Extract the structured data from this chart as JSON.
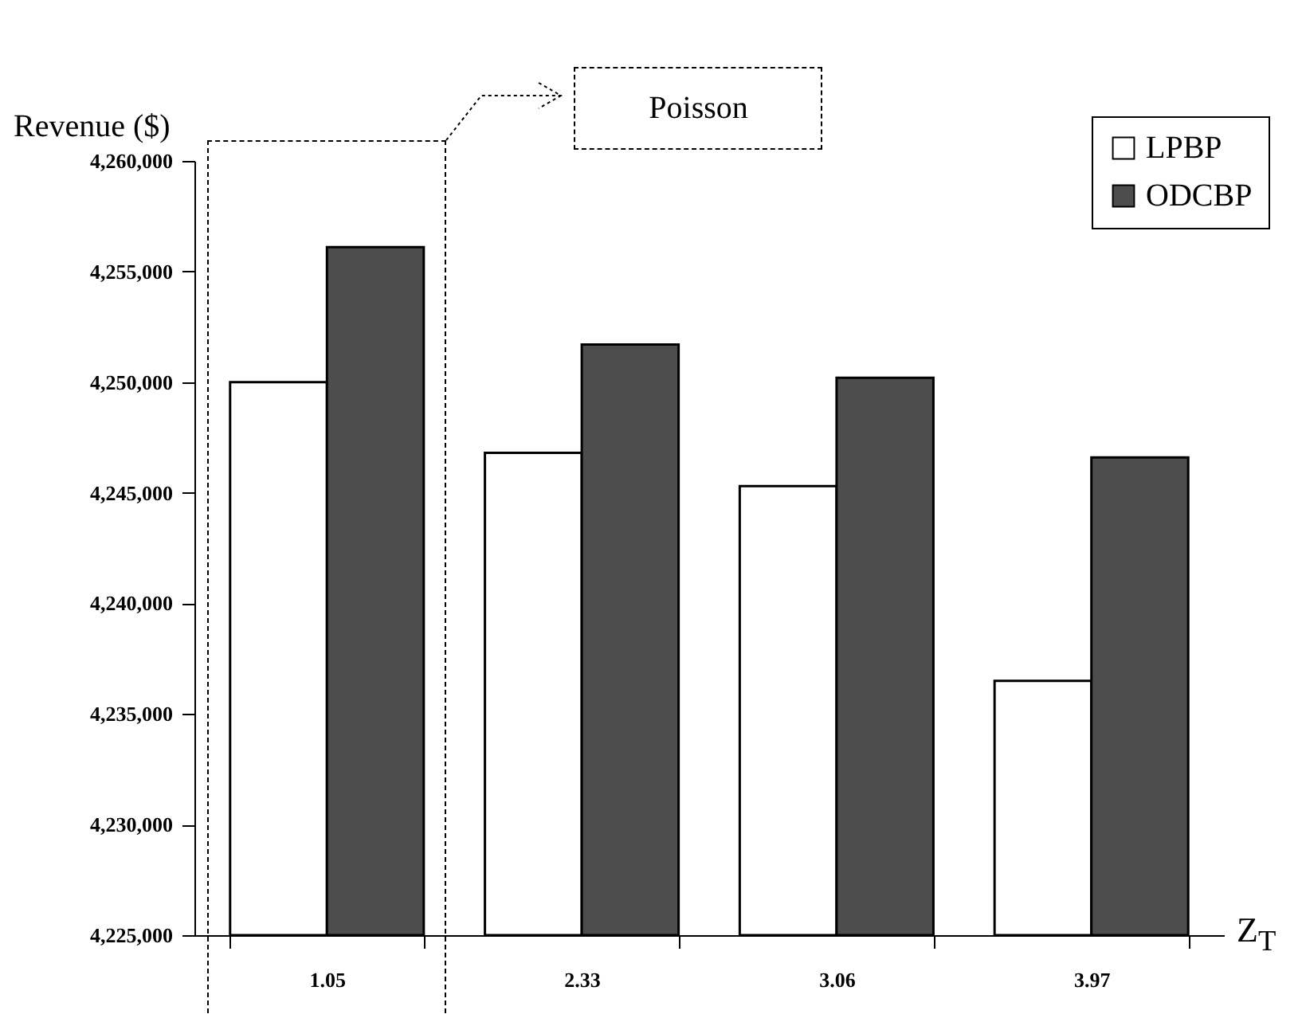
{
  "chart_data": {
    "type": "bar",
    "ylabel": "Revenue ($)",
    "xlabel": "Z$_{T}$",
    "categories": [
      "1.05",
      "2.33",
      "3.06",
      "3.97"
    ],
    "series": [
      {
        "name": "LPBP",
        "color": "#ffffff",
        "values": [
          4250000,
          4246800,
          4245300,
          4236500
        ]
      },
      {
        "name": "ODCBP",
        "color": "#4d4d4d",
        "values": [
          4256100,
          4251700,
          4250200,
          4246600
        ]
      }
    ],
    "ylim": [
      4225000,
      4260000
    ],
    "yticks": [
      {
        "value": 4225000,
        "label": "4,225,000"
      },
      {
        "value": 4230000,
        "label": "4,230,000"
      },
      {
        "value": 4235000,
        "label": "4,235,000"
      },
      {
        "value": 4240000,
        "label": "4,240,000"
      },
      {
        "value": 4245000,
        "label": "4,245,000"
      },
      {
        "value": 4250000,
        "label": "4,250,000"
      },
      {
        "value": 4255000,
        "label": "4,255,000"
      },
      {
        "value": 4260000,
        "label": "4,260,000"
      }
    ],
    "grid": false,
    "legend": "top right",
    "annotations": [
      "Poisson"
    ]
  }
}
